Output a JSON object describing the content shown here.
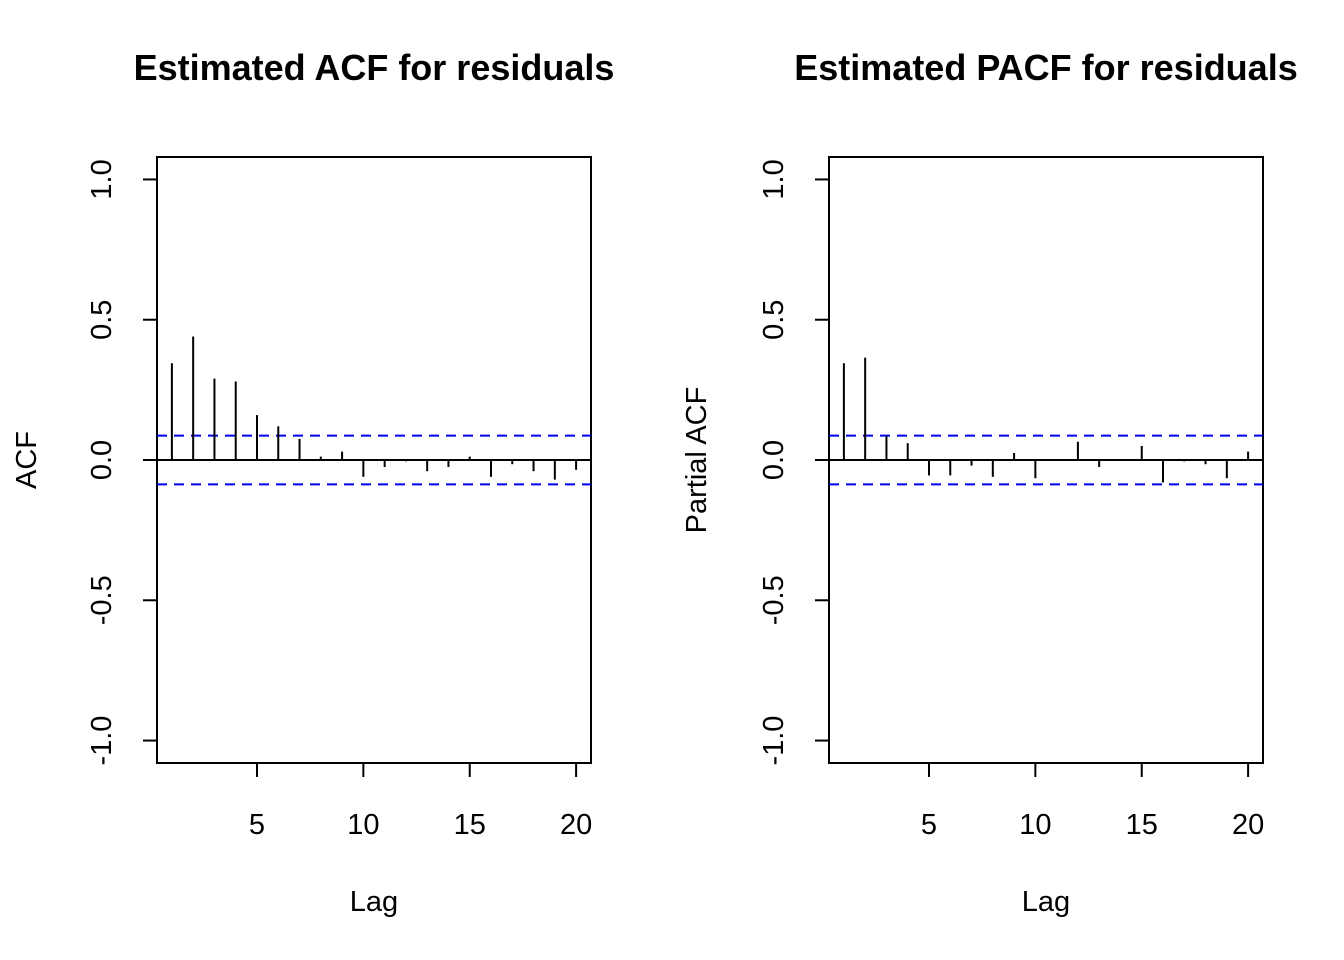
{
  "chart_data": [
    {
      "type": "bar",
      "title": "Estimated ACF for residuals",
      "xlabel": "Lag",
      "ylabel": "ACF",
      "xlim": [
        0.3,
        20.7
      ],
      "ylim": [
        -1.08,
        1.08
      ],
      "xticks": [
        "5",
        "10",
        "15",
        "20"
      ],
      "yticks": [
        "-1.0",
        "-0.5",
        "0.0",
        "0.5",
        "1.0"
      ],
      "confidence_band": [
        0.087,
        -0.087
      ],
      "lags": [
        1,
        2,
        3,
        4,
        5,
        6,
        7,
        8,
        9,
        10,
        11,
        12,
        13,
        14,
        15,
        16,
        17,
        18,
        19,
        20
      ],
      "values": [
        0.345,
        0.44,
        0.29,
        0.28,
        0.16,
        0.12,
        0.075,
        0.012,
        0.03,
        -0.06,
        -0.025,
        -0.005,
        -0.04,
        -0.025,
        0.012,
        -0.06,
        -0.015,
        -0.04,
        -0.07,
        -0.035
      ]
    },
    {
      "type": "bar",
      "title": "Estimated PACF for residuals",
      "xlabel": "Lag",
      "ylabel": "Partial ACF",
      "xlim": [
        0.3,
        20.7
      ],
      "ylim": [
        -1.08,
        1.08
      ],
      "xticks": [
        "5",
        "10",
        "15",
        "20"
      ],
      "yticks": [
        "-1.0",
        "-0.5",
        "0.0",
        "0.5",
        "1.0"
      ],
      "confidence_band": [
        0.087,
        -0.087
      ],
      "lags": [
        1,
        2,
        3,
        4,
        5,
        6,
        7,
        8,
        9,
        10,
        11,
        12,
        13,
        14,
        15,
        16,
        17,
        18,
        19,
        20
      ],
      "values": [
        0.345,
        0.365,
        0.085,
        0.06,
        -0.055,
        -0.055,
        -0.02,
        -0.06,
        0.025,
        -0.065,
        0.0,
        0.065,
        -0.025,
        0.0,
        0.05,
        -0.08,
        -0.005,
        -0.015,
        -0.065,
        0.03
      ]
    }
  ]
}
